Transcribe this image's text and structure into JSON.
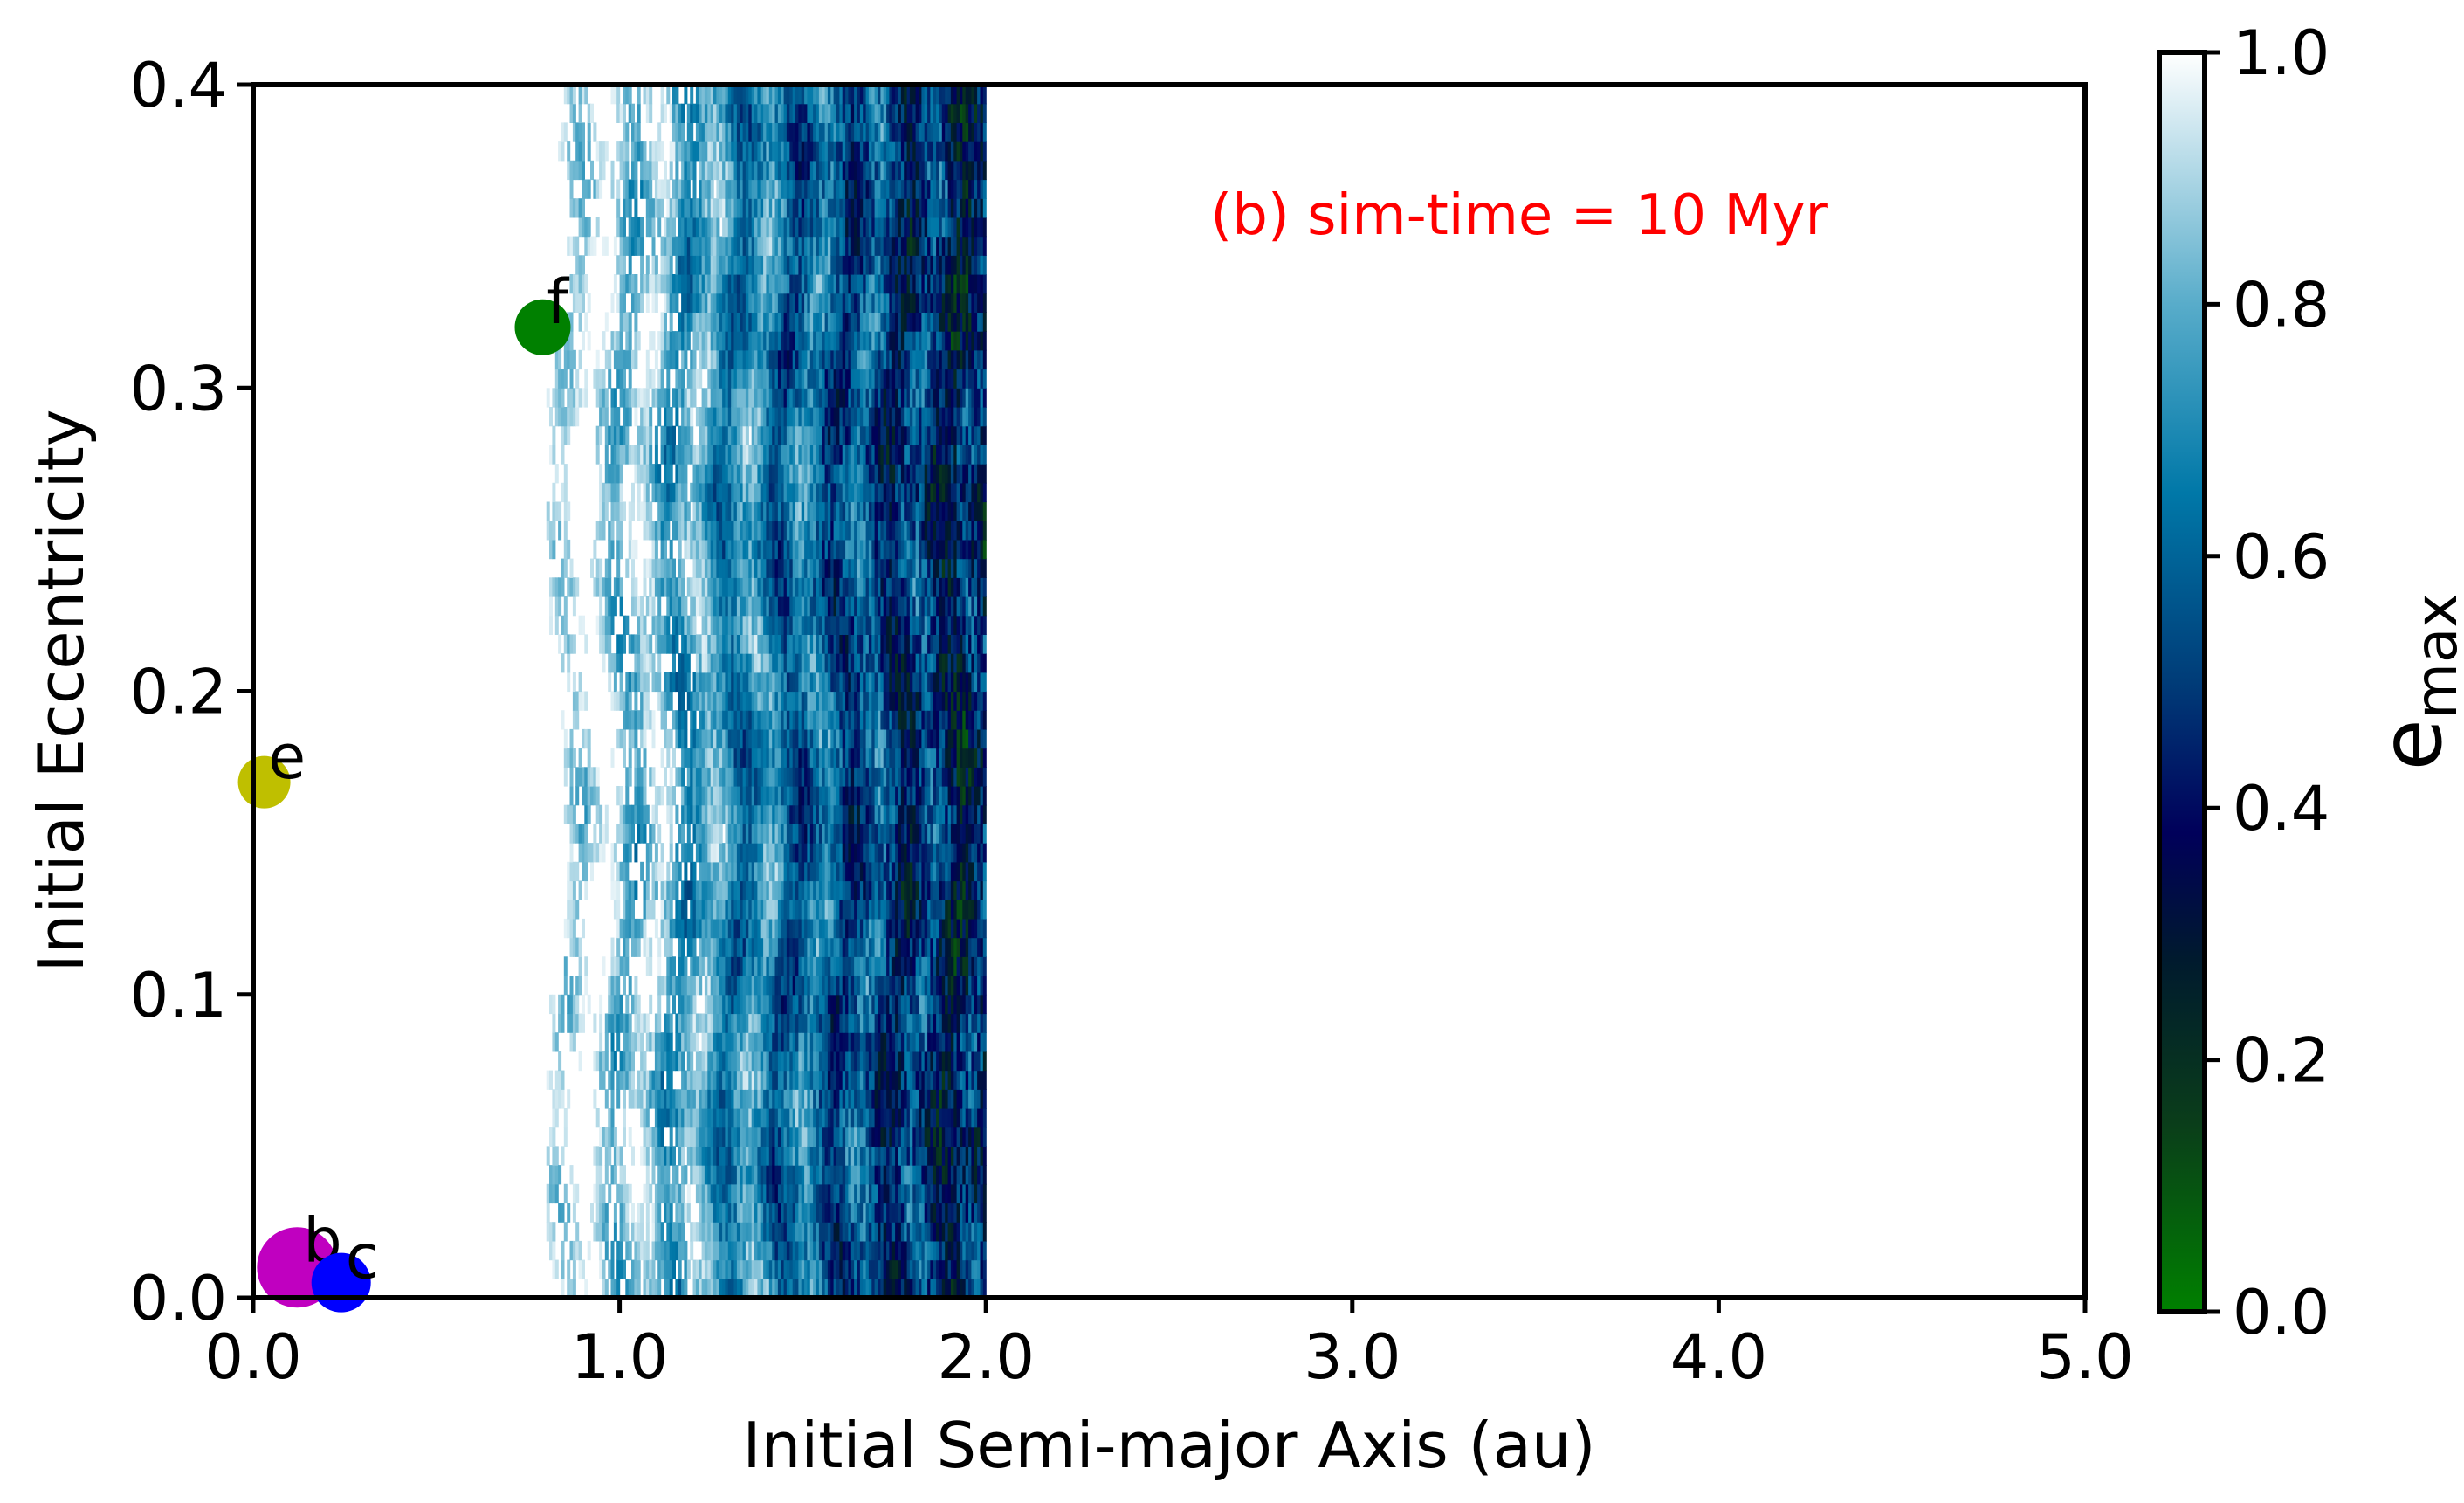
{
  "chart_data": {
    "type": "heatmap",
    "title": "",
    "annotation": {
      "text": "(b) sim-time = 10 Myr",
      "color": "#ff0000"
    },
    "xlabel": "Initial Semi-major Axis (au)",
    "ylabel": "Initial Eccentricity",
    "xlim": [
      0.0,
      5.0
    ],
    "ylim": [
      0.0,
      0.4
    ],
    "x_ticks": [
      {
        "value": 0.0,
        "label": "0.0"
      },
      {
        "value": 1.0,
        "label": "1.0"
      },
      {
        "value": 2.0,
        "label": "2.0"
      },
      {
        "value": 3.0,
        "label": "3.0"
      },
      {
        "value": 4.0,
        "label": "4.0"
      },
      {
        "value": 5.0,
        "label": "5.0"
      }
    ],
    "y_ticks": [
      {
        "value": 0.0,
        "label": "0.0"
      },
      {
        "value": 0.1,
        "label": "0.1"
      },
      {
        "value": 0.2,
        "label": "0.2"
      },
      {
        "value": 0.3,
        "label": "0.3"
      },
      {
        "value": 0.4,
        "label": "0.4"
      }
    ],
    "colorbar": {
      "label_main": "e",
      "label_sub": "max",
      "range": [
        0.0,
        1.0
      ],
      "ticks": [
        {
          "value": 0.0,
          "label": "0.0"
        },
        {
          "value": 0.2,
          "label": "0.2"
        },
        {
          "value": 0.4,
          "label": "0.4"
        },
        {
          "value": 0.6,
          "label": "0.6"
        },
        {
          "value": 0.8,
          "label": "0.8"
        },
        {
          "value": 1.0,
          "label": "1.0"
        }
      ],
      "stops": [
        {
          "value": 0.0,
          "color": "#008000"
        },
        {
          "value": 0.15,
          "color": "#0a3d1a"
        },
        {
          "value": 0.28,
          "color": "#001a2e"
        },
        {
          "value": 0.38,
          "color": "#00005a"
        },
        {
          "value": 0.5,
          "color": "#003c78"
        },
        {
          "value": 0.65,
          "color": "#0078a8"
        },
        {
          "value": 0.8,
          "color": "#58acca"
        },
        {
          "value": 1.0,
          "color": "#ffffff"
        }
      ]
    },
    "stability_region": {
      "x_range": [
        0.8,
        2.0
      ],
      "y_range": [
        0.0,
        0.4
      ],
      "description_values": "emax decreases with a; white (~1.0) for a < 0.8 and a > 2.0"
    },
    "planets": [
      {
        "name": "b",
        "a": 0.12,
        "e": 0.01,
        "color": "#c000c0",
        "radius": 46
      },
      {
        "name": "c",
        "a": 0.24,
        "e": 0.005,
        "color": "#0000ff",
        "radius": 34
      },
      {
        "name": "e",
        "a": 0.03,
        "e": 0.17,
        "color": "#bfbf00",
        "radius": 30
      },
      {
        "name": "f",
        "a": 0.79,
        "e": 0.32,
        "color": "#008000",
        "radius": 32
      }
    ]
  }
}
